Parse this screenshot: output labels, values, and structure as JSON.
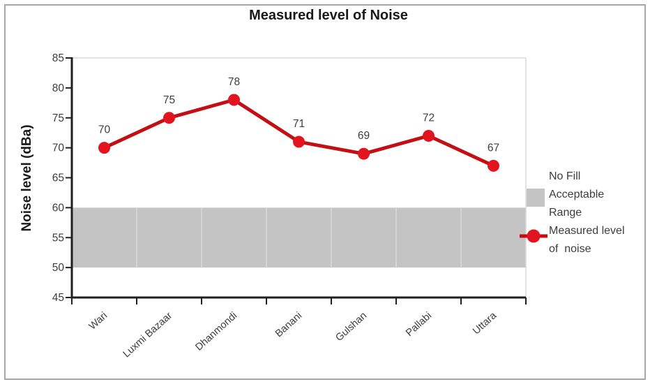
{
  "title": "Measured level of Noise",
  "y_axis_title": "Noise level (dBa)",
  "legend": {
    "items": [
      {
        "icon": "gray-square-swatch",
        "label": "No Fill\nAcceptable\nRange"
      },
      {
        "icon": "red-line-marker",
        "label": "Measured level\nof  noise"
      }
    ]
  },
  "colors": {
    "line": "#c30e13",
    "marker": "#e11420",
    "band": "#c4c4c4",
    "band_gap": "#d4d4d4",
    "axis": "#1f1f1f",
    "plot_border": "#d9d9d9",
    "outer_border": "#a6a6a6",
    "label_text": "#3d3d3d",
    "title_text": "#1a1a1a"
  },
  "chart_data": {
    "type": "line",
    "title": "Measured level of Noise",
    "xlabel": "",
    "ylabel": "Noise level (dBa)",
    "categories": [
      "Wari",
      "Luxmi Bazaar",
      "Dhanmondi",
      "Banani",
      "Gulshan",
      "Pallabi",
      "Uttara"
    ],
    "series": [
      {
        "name": "Measured level of noise",
        "type": "line",
        "values": [
          70,
          75,
          78,
          71,
          69,
          72,
          67
        ]
      },
      {
        "name": "No Fill Acceptable Range",
        "type": "band",
        "low": 50,
        "high": 60
      }
    ],
    "data_labels": [
      70,
      75,
      78,
      71,
      69,
      72,
      67
    ],
    "ylim": [
      45,
      85
    ],
    "ytick_step": 5,
    "yticks": [
      45,
      50,
      55,
      60,
      65,
      70,
      75,
      80,
      85
    ],
    "grid": false,
    "legend_position": "right"
  }
}
